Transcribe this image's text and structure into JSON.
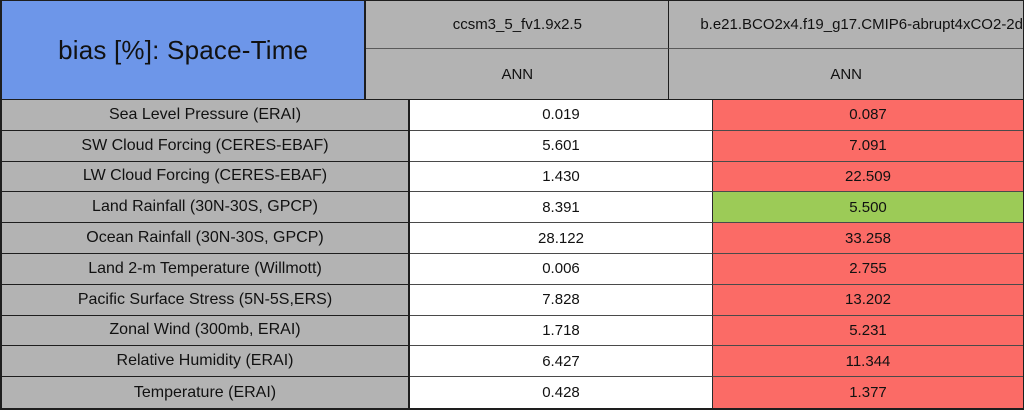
{
  "title": "bias [%]: Space-Time",
  "columns": [
    {
      "model": "ccsm3_5_fv1.9x2.5",
      "season": "ANN"
    },
    {
      "model": "b.e21.BCO2x4.f19_g17.CMIP6-abrupt4xCO2-2d",
      "season": "ANN"
    }
  ],
  "rows": [
    {
      "label": "Sea Level Pressure (ERAI)",
      "values": [
        "0.019",
        "0.087"
      ],
      "status": "worse"
    },
    {
      "label": "SW Cloud Forcing (CERES-EBAF)",
      "values": [
        "5.601",
        "7.091"
      ],
      "status": "worse"
    },
    {
      "label": "LW Cloud Forcing (CERES-EBAF)",
      "values": [
        "1.430",
        "22.509"
      ],
      "status": "worse"
    },
    {
      "label": "Land Rainfall (30N-30S, GPCP)",
      "values": [
        "8.391",
        "5.500"
      ],
      "status": "better"
    },
    {
      "label": "Ocean Rainfall (30N-30S, GPCP)",
      "values": [
        "28.122",
        "33.258"
      ],
      "status": "worse"
    },
    {
      "label": "Land 2-m Temperature (Willmott)",
      "values": [
        "0.006",
        "2.755"
      ],
      "status": "worse"
    },
    {
      "label": "Pacific Surface Stress (5N-5S,ERS)",
      "values": [
        "7.828",
        "13.202"
      ],
      "status": "worse"
    },
    {
      "label": "Zonal Wind (300mb, ERAI)",
      "values": [
        "1.718",
        "5.231"
      ],
      "status": "worse"
    },
    {
      "label": "Relative Humidity (ERAI)",
      "values": [
        "6.427",
        "11.344"
      ],
      "status": "worse"
    },
    {
      "label": "Temperature (ERAI)",
      "values": [
        "0.428",
        "1.377"
      ],
      "status": "worse"
    }
  ],
  "colors": {
    "header_blue": "#6D96E9",
    "cell_gray": "#B3B3B3",
    "value_white": "#FFFFFF",
    "worse": "#FB6B66",
    "better": "#9CCB57"
  },
  "chart_data": {
    "type": "table",
    "title": "bias [%]: Space-Time",
    "categories": [
      "Sea Level Pressure (ERAI)",
      "SW Cloud Forcing (CERES-EBAF)",
      "LW Cloud Forcing (CERES-EBAF)",
      "Land Rainfall (30N-30S, GPCP)",
      "Ocean Rainfall (30N-30S, GPCP)",
      "Land 2-m Temperature (Willmott)",
      "Pacific Surface Stress (5N-5S,ERS)",
      "Zonal Wind (300mb, ERAI)",
      "Relative Humidity (ERAI)",
      "Temperature (ERAI)"
    ],
    "series": [
      {
        "name": "ccsm3_5_fv1.9x2.5 (ANN)",
        "values": [
          0.019,
          5.601,
          1.43,
          8.391,
          28.122,
          0.006,
          7.828,
          1.718,
          6.427,
          0.428
        ]
      },
      {
        "name": "b.e21.BCO2x4.f19_g17.CMIP6-abrupt4xCO2-2d (ANN)",
        "values": [
          0.087,
          7.091,
          22.509,
          5.5,
          33.258,
          2.755,
          13.202,
          5.231,
          11.344,
          1.377
        ],
        "cell_colors": [
          "red",
          "red",
          "red",
          "green",
          "red",
          "red",
          "red",
          "red",
          "red",
          "red"
        ]
      }
    ]
  }
}
